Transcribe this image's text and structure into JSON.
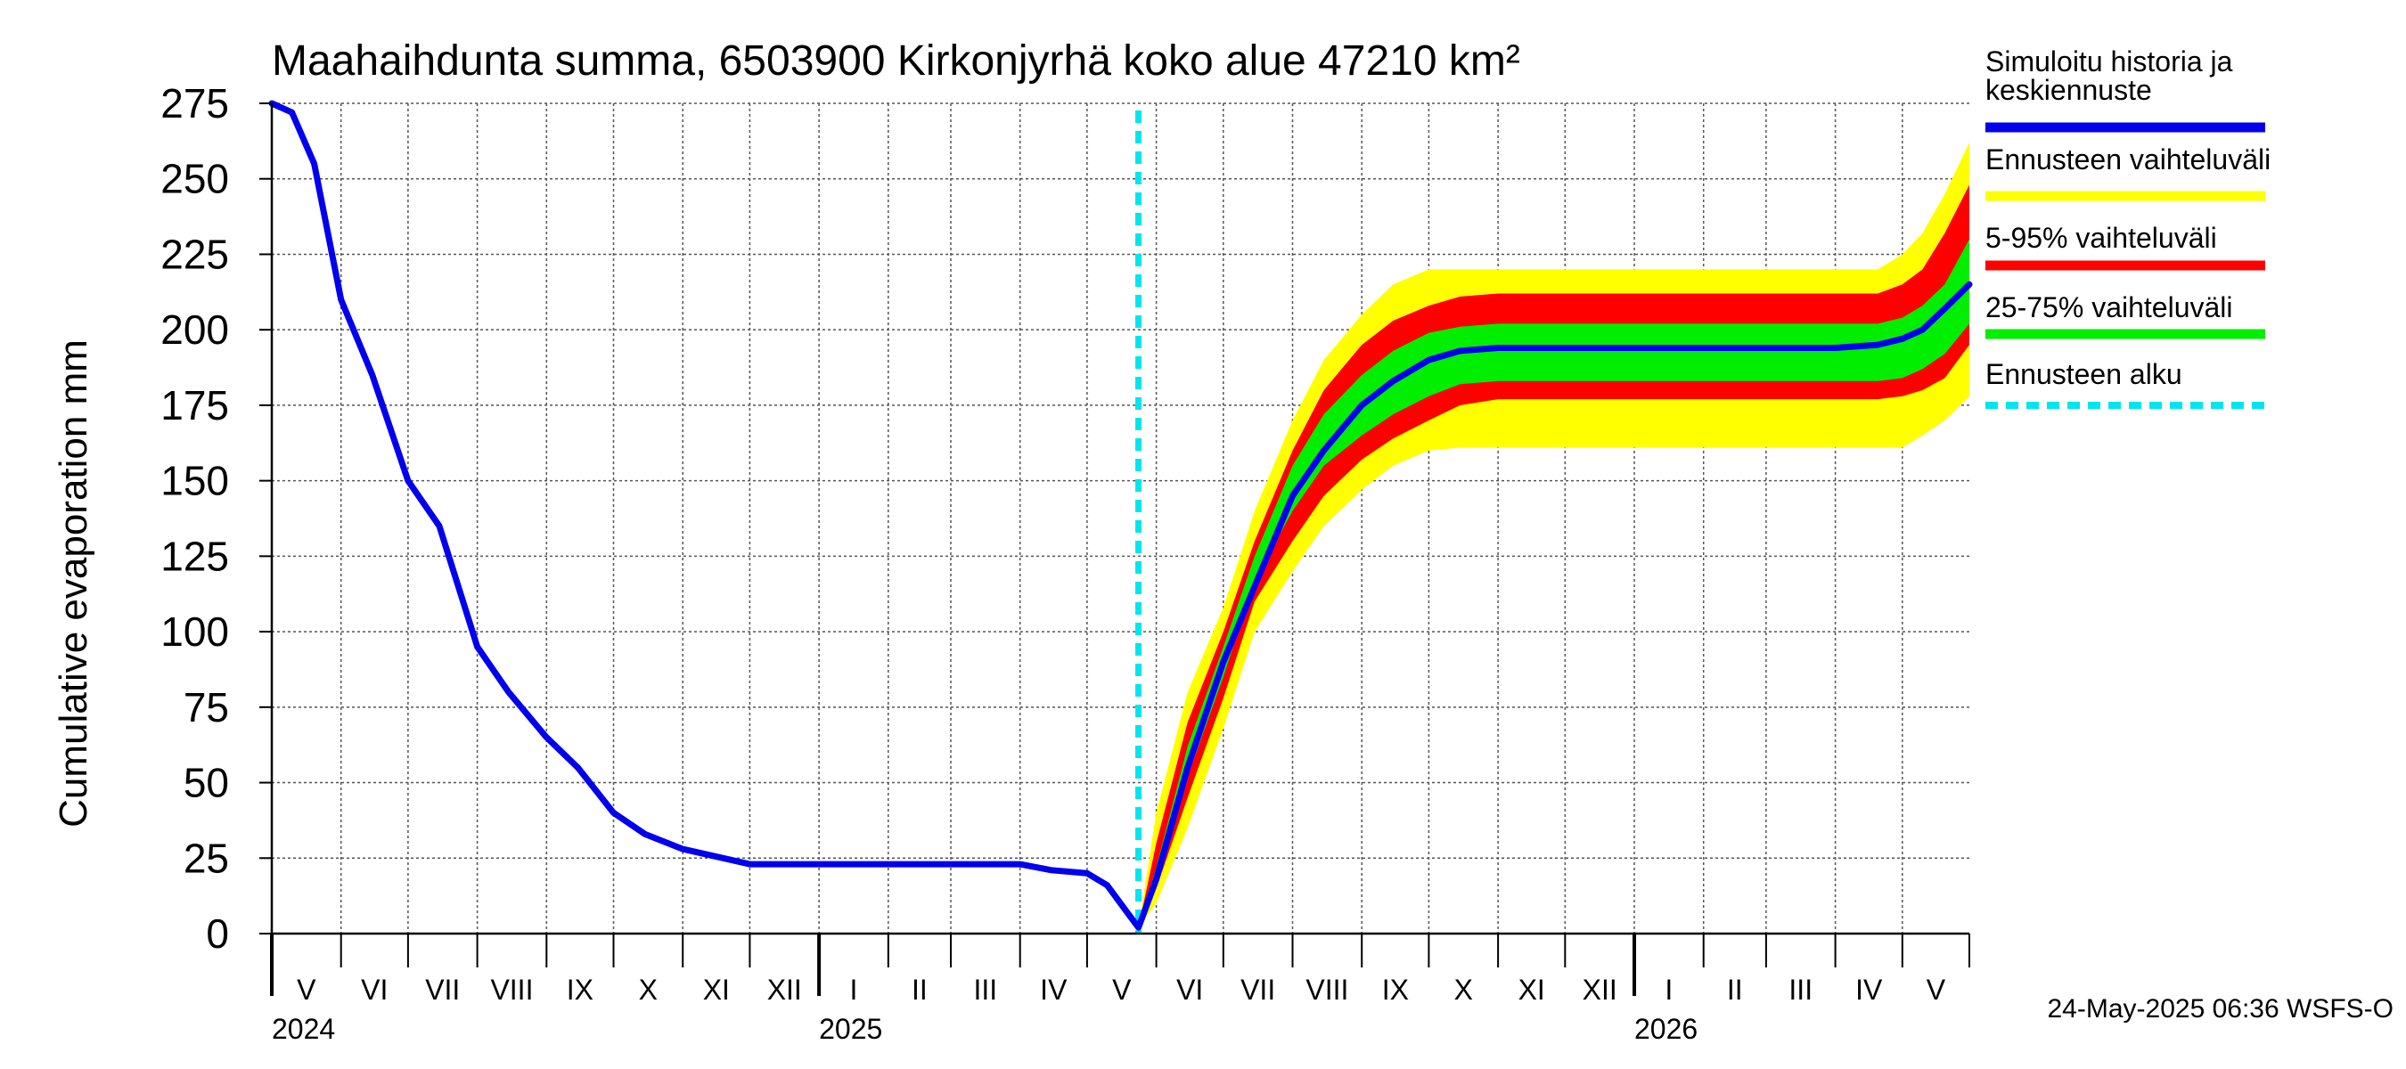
{
  "chart_data": {
    "type": "area",
    "title": "Maahaihdunta summa, 6503900 Kirkonjyrhä koko alue 47210 km²",
    "ylabel": "Cumulative evaporation   mm",
    "ylim": [
      0,
      275
    ],
    "y_ticks": [
      "0",
      "25",
      "50",
      "75",
      "100",
      "125",
      "150",
      "175",
      "200",
      "225",
      "250",
      "275"
    ],
    "x_range": [
      "2024-05-01",
      "2026-05-31"
    ],
    "grid": true,
    "months": [
      {
        "label": "V",
        "start": "2024-05-01"
      },
      {
        "label": "VI",
        "start": "2024-06-01"
      },
      {
        "label": "VII",
        "start": "2024-07-01"
      },
      {
        "label": "VIII",
        "start": "2024-08-01"
      },
      {
        "label": "IX",
        "start": "2024-09-01"
      },
      {
        "label": "X",
        "start": "2024-10-01"
      },
      {
        "label": "XI",
        "start": "2024-11-01"
      },
      {
        "label": "XII",
        "start": "2024-12-01"
      },
      {
        "label": "I",
        "start": "2025-01-01"
      },
      {
        "label": "II",
        "start": "2025-02-01"
      },
      {
        "label": "III",
        "start": "2025-03-01"
      },
      {
        "label": "IV",
        "start": "2025-04-01"
      },
      {
        "label": "V",
        "start": "2025-05-01"
      },
      {
        "label": "VI",
        "start": "2025-06-01"
      },
      {
        "label": "VII",
        "start": "2025-07-01"
      },
      {
        "label": "VIII",
        "start": "2025-08-01"
      },
      {
        "label": "IX",
        "start": "2025-09-01"
      },
      {
        "label": "X",
        "start": "2025-10-01"
      },
      {
        "label": "XI",
        "start": "2025-11-01"
      },
      {
        "label": "XII",
        "start": "2025-12-01"
      },
      {
        "label": "I",
        "start": "2026-01-01"
      },
      {
        "label": "II",
        "start": "2026-02-01"
      },
      {
        "label": "III",
        "start": "2026-03-01"
      },
      {
        "label": "IV",
        "start": "2026-04-01"
      },
      {
        "label": "V",
        "start": "2026-05-01"
      }
    ],
    "years": [
      {
        "label": "2024",
        "start": "2024-05-01"
      },
      {
        "label": "2025",
        "start": "2025-01-01"
      },
      {
        "label": "2026",
        "start": "2026-01-01"
      }
    ],
    "forecast_start": "2025-05-24",
    "series": [
      {
        "name": "Simuloitu historia ja keskiennuste",
        "color": "#0000ee",
        "x": [
          "2024-05-01",
          "2024-05-10",
          "2024-05-20",
          "2024-06-01",
          "2024-06-15",
          "2024-07-01",
          "2024-07-15",
          "2024-08-01",
          "2024-08-15",
          "2024-09-01",
          "2024-09-15",
          "2024-10-01",
          "2024-10-15",
          "2024-11-01",
          "2024-12-01",
          "2025-01-01",
          "2025-02-01",
          "2025-03-01",
          "2025-04-01",
          "2025-04-15",
          "2025-05-01",
          "2025-05-10",
          "2025-05-18",
          "2025-05-24",
          "2025-06-01",
          "2025-06-15",
          "2025-07-01",
          "2025-07-15",
          "2025-08-01",
          "2025-08-15",
          "2025-09-01",
          "2025-09-15",
          "2025-10-01",
          "2025-10-15",
          "2025-11-01",
          "2025-12-01",
          "2026-01-01",
          "2026-02-01",
          "2026-03-01",
          "2026-04-01",
          "2026-04-20",
          "2026-05-01",
          "2026-05-10",
          "2026-05-20",
          "2026-05-31"
        ],
        "y": [
          275,
          272,
          255,
          210,
          185,
          150,
          135,
          95,
          80,
          65,
          55,
          40,
          33,
          28,
          23,
          23,
          23,
          23,
          23,
          21,
          20,
          16,
          8,
          2,
          18,
          55,
          90,
          115,
          145,
          160,
          175,
          183,
          190,
          193,
          194,
          194,
          194,
          194,
          194,
          194,
          195,
          197,
          200,
          207,
          215
        ]
      },
      {
        "name": "Ennusteen vaihteluväli",
        "color": "#ffff00",
        "x": [
          "2025-05-24",
          "2025-06-01",
          "2025-06-15",
          "2025-07-01",
          "2025-07-15",
          "2025-08-01",
          "2025-08-15",
          "2025-09-01",
          "2025-09-15",
          "2025-10-01",
          "2025-10-15",
          "2025-11-01",
          "2025-12-01",
          "2026-01-01",
          "2026-02-01",
          "2026-03-01",
          "2026-04-01",
          "2026-04-20",
          "2026-05-01",
          "2026-05-10",
          "2026-05-20",
          "2026-05-31"
        ],
        "upper": [
          2,
          40,
          80,
          108,
          140,
          170,
          190,
          205,
          215,
          220,
          220,
          220,
          220,
          220,
          220,
          220,
          220,
          220,
          225,
          232,
          245,
          262
        ],
        "lower": [
          2,
          10,
          35,
          68,
          100,
          120,
          135,
          147,
          155,
          160,
          161,
          161,
          161,
          161,
          161,
          161,
          161,
          161,
          161,
          165,
          170,
          178
        ]
      },
      {
        "name": "5-95% vaihteluväli",
        "color": "#ff0000",
        "x": [
          "2025-05-24",
          "2025-06-01",
          "2025-06-15",
          "2025-07-01",
          "2025-07-15",
          "2025-08-01",
          "2025-08-15",
          "2025-09-01",
          "2025-09-15",
          "2025-10-01",
          "2025-10-15",
          "2025-11-01",
          "2025-12-01",
          "2026-01-01",
          "2026-02-01",
          "2026-03-01",
          "2026-04-01",
          "2026-04-20",
          "2026-05-01",
          "2026-05-10",
          "2026-05-20",
          "2026-05-31"
        ],
        "upper": [
          2,
          30,
          70,
          100,
          130,
          160,
          180,
          195,
          203,
          208,
          211,
          212,
          212,
          212,
          212,
          212,
          212,
          212,
          215,
          220,
          232,
          248
        ],
        "lower": [
          2,
          15,
          45,
          78,
          110,
          130,
          145,
          157,
          164,
          170,
          175,
          177,
          177,
          177,
          177,
          177,
          177,
          177,
          178,
          180,
          184,
          195
        ]
      },
      {
        "name": "25-75% vaihteluväli",
        "color": "#00ee00",
        "x": [
          "2025-05-24",
          "2025-06-01",
          "2025-06-15",
          "2025-07-01",
          "2025-07-15",
          "2025-08-01",
          "2025-08-15",
          "2025-09-01",
          "2025-09-15",
          "2025-10-01",
          "2025-10-15",
          "2025-11-01",
          "2025-12-01",
          "2026-01-01",
          "2026-02-01",
          "2026-03-01",
          "2026-04-01",
          "2026-04-20",
          "2026-05-01",
          "2026-05-10",
          "2026-05-20",
          "2026-05-31"
        ],
        "upper": [
          2,
          22,
          62,
          95,
          125,
          155,
          172,
          185,
          193,
          199,
          201,
          202,
          202,
          202,
          202,
          202,
          202,
          202,
          204,
          208,
          215,
          230
        ],
        "lower": [
          2,
          17,
          52,
          85,
          117,
          140,
          155,
          165,
          172,
          178,
          182,
          183,
          183,
          183,
          183,
          183,
          183,
          183,
          184,
          187,
          192,
          202
        ]
      },
      {
        "name": "Ennusteen alku",
        "color": "#00e5ee"
      }
    ]
  },
  "legend": {
    "items": [
      {
        "label_lines": [
          "Simuloitu historia ja",
          "keskiennuste"
        ],
        "color": "#0000ee",
        "style": "solid"
      },
      {
        "label_lines": [
          "Ennusteen vaihteluväli"
        ],
        "color": "#ffff00",
        "style": "solid"
      },
      {
        "label_lines": [
          "5-95% vaihteluväli"
        ],
        "color": "#ff0000",
        "style": "solid"
      },
      {
        "label_lines": [
          "25-75% vaihteluväli"
        ],
        "color": "#00ee00",
        "style": "solid"
      },
      {
        "label_lines": [
          "Ennusteen alku"
        ],
        "color": "#00e5ee",
        "style": "dashed"
      }
    ]
  },
  "footer": {
    "timestamp": "24-May-2025 06:36 WSFS-O"
  }
}
